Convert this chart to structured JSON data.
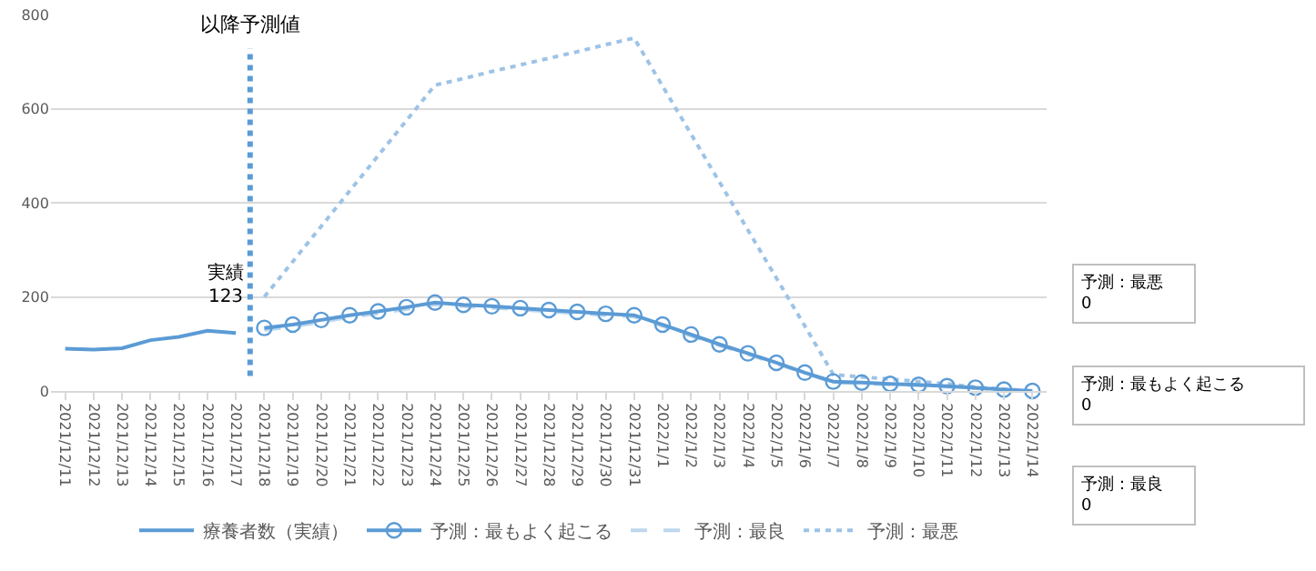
{
  "chart_data": {
    "type": "line",
    "categories": [
      "2021/12/11",
      "2021/12/12",
      "2021/12/13",
      "2021/12/14",
      "2021/12/15",
      "2021/12/16",
      "2021/12/17",
      "2021/12/18",
      "2021/12/19",
      "2021/12/20",
      "2021/12/21",
      "2021/12/22",
      "2021/12/23",
      "2021/12/24",
      "2021/12/25",
      "2021/12/26",
      "2021/12/27",
      "2021/12/28",
      "2021/12/29",
      "2021/12/30",
      "2021/12/31",
      "2022/1/1",
      "2022/1/2",
      "2022/1/3",
      "2022/1/4",
      "2022/1/5",
      "2022/1/6",
      "2022/1/7",
      "2022/1/8",
      "2022/1/9",
      "2022/1/10",
      "2022/1/11",
      "2022/1/12",
      "2022/1/13",
      "2022/1/14"
    ],
    "series": [
      {
        "name": "療養者数（実績）",
        "color": "#5b9bd5",
        "marker": "none",
        "line_style": "solid",
        "values": [
          90,
          88,
          91,
          108,
          115,
          128,
          123,
          null,
          null,
          null,
          null,
          null,
          null,
          null,
          null,
          null,
          null,
          null,
          null,
          null,
          null,
          null,
          null,
          null,
          null,
          null,
          null,
          null,
          null,
          null,
          null,
          null,
          null,
          null,
          null
        ]
      },
      {
        "name": "予測：最もよく起こる",
        "color": "#5b9bd5",
        "marker": "circle",
        "line_style": "solid",
        "values": [
          null,
          null,
          null,
          null,
          null,
          null,
          null,
          134,
          141,
          151,
          161,
          169,
          178,
          188,
          183,
          180,
          176,
          172,
          168,
          164,
          161,
          141,
          120,
          99,
          80,
          60,
          39,
          20,
          18,
          15,
          13,
          10,
          7,
          3,
          0
        ]
      },
      {
        "name": "予測：最良",
        "color": "#bdd7ee",
        "marker": "none",
        "line_style": "dashed",
        "values": [
          null,
          null,
          null,
          null,
          null,
          null,
          null,
          130,
          137,
          147,
          157,
          165,
          174,
          184,
          180,
          177,
          173,
          169,
          165,
          161,
          158,
          138,
          117,
          97,
          78,
          58,
          38,
          18,
          16,
          14,
          12,
          9,
          6,
          3,
          0
        ]
      },
      {
        "name": "予測：最悪",
        "color": "#9dc3e6",
        "marker": "none",
        "line_style": "dotted",
        "values": [
          null,
          null,
          null,
          null,
          null,
          null,
          null,
          200,
          275,
          350,
          425,
          500,
          575,
          650,
          664,
          679,
          693,
          707,
          721,
          736,
          750,
          648,
          546,
          444,
          342,
          240,
          138,
          35,
          30,
          25,
          20,
          15,
          8,
          4,
          0
        ]
      }
    ],
    "ylim": [
      0,
      800
    ],
    "yticks": [
      0,
      200,
      400,
      600,
      800
    ],
    "grid": "y",
    "legend": "bottom",
    "ref_lines": [
      {
        "axis": "x",
        "value": "2021/12/17",
        "label": "以降予測値",
        "color": "#5b9bd5",
        "line_style": "dotted"
      }
    ],
    "annotations": [
      {
        "text": "実績\n123",
        "x": "2021/12/17",
        "y": 123
      },
      "予測：最悪\n0",
      "予測：最もよく起こる\n0",
      "予測：最良\n0"
    ]
  }
}
